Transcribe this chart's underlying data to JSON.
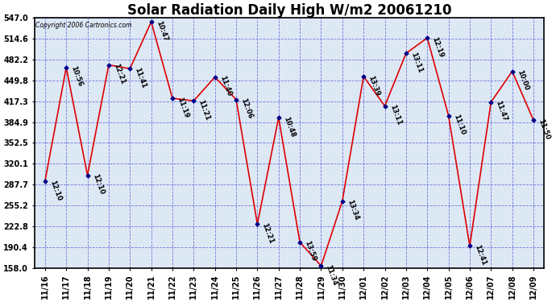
{
  "title": "Solar Radiation Daily High W/m2 20061210",
  "copyright_text": "Copyright 2006 Cartronics.com",
  "dates": [
    "11/16",
    "11/17",
    "11/18",
    "11/19",
    "11/20",
    "11/21",
    "11/22",
    "11/23",
    "11/24",
    "11/25",
    "11/26",
    "11/27",
    "11/28",
    "11/29",
    "11/30",
    "12/01",
    "12/02",
    "12/03",
    "12/04",
    "12/05",
    "12/06",
    "12/07",
    "12/08",
    "12/09"
  ],
  "values": [
    293,
    470,
    302,
    474,
    468,
    541,
    422,
    418,
    455,
    420,
    226,
    392,
    198,
    161,
    262,
    456,
    410,
    492,
    516,
    395,
    192,
    416,
    464,
    388
  ],
  "labels": [
    "12:10",
    "10:56",
    "12:10",
    "12:21",
    "11:41",
    "10:47",
    "11:19",
    "11:21",
    "11:40",
    "12:06",
    "12:21",
    "10:48",
    "13:59",
    "11:34",
    "13:34",
    "13:39",
    "13:11",
    "13:11",
    "12:19",
    "11:10",
    "12:41",
    "11:47",
    "10:00",
    "11:50"
  ],
  "ylim": [
    158.0,
    547.0
  ],
  "yticks": [
    158.0,
    190.4,
    222.8,
    255.2,
    287.7,
    320.1,
    352.5,
    384.9,
    417.3,
    449.8,
    482.2,
    514.6,
    547.0
  ],
  "line_color": "#dd0000",
  "marker_color": "#00008b",
  "bg_color": "#dde8f5",
  "grid_color": "#4444cc",
  "title_fontsize": 12,
  "tick_fontsize": 7,
  "label_fontsize": 6,
  "figwidth": 6.9,
  "figheight": 3.75,
  "dpi": 100
}
